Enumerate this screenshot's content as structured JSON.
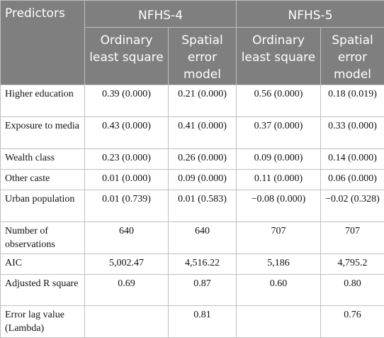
{
  "header": {
    "predictors": "Predictors",
    "groups": [
      "NFHS-4",
      "NFHS-5"
    ],
    "subcols": [
      "Ordinary least square",
      "Spatial error model",
      "Ordinary least square",
      "Spatial error model"
    ]
  },
  "rows": [
    {
      "label": "Higher education",
      "values": [
        "0.39 (0.000)",
        "0.21 (0.000)",
        "0.56 (0.000)",
        "0.18 (0.019)"
      ]
    },
    {
      "label": "Exposure to media",
      "values": [
        "0.43 (0.000)",
        "0.41 (0.000)",
        "0.37 (0.000)",
        "0.33 (0.000)"
      ]
    },
    {
      "label": "Wealth class",
      "values": [
        "0.23 (0.000)",
        "0.26 (0.000)",
        "0.09 (0.000)",
        "0.14 (0.000)"
      ]
    },
    {
      "label": "Other caste",
      "values": [
        "0.01 (0.000)",
        "0.09 (0.000)",
        "0.11 (0.000)",
        "0.06 (0.000)"
      ]
    },
    {
      "label": "Urban population",
      "values": [
        "0.01 (0.739)",
        "0.01 (0.583)",
        "−0.08 (0.000)",
        "−0.02 (0.328)"
      ]
    },
    {
      "label": "Number of observations",
      "values": [
        "640",
        "640",
        "707",
        "707"
      ]
    },
    {
      "label": "AIC",
      "values": [
        "5,002.47",
        "4,516.22",
        "5,186",
        "4,795.2"
      ]
    },
    {
      "label": "Adjusted R square",
      "values": [
        "0.69",
        "0.87",
        "0.60",
        "0.80"
      ]
    },
    {
      "label": "Error lag value (Lambda)",
      "values": [
        "",
        "0.81",
        "",
        "0.76"
      ]
    }
  ]
}
